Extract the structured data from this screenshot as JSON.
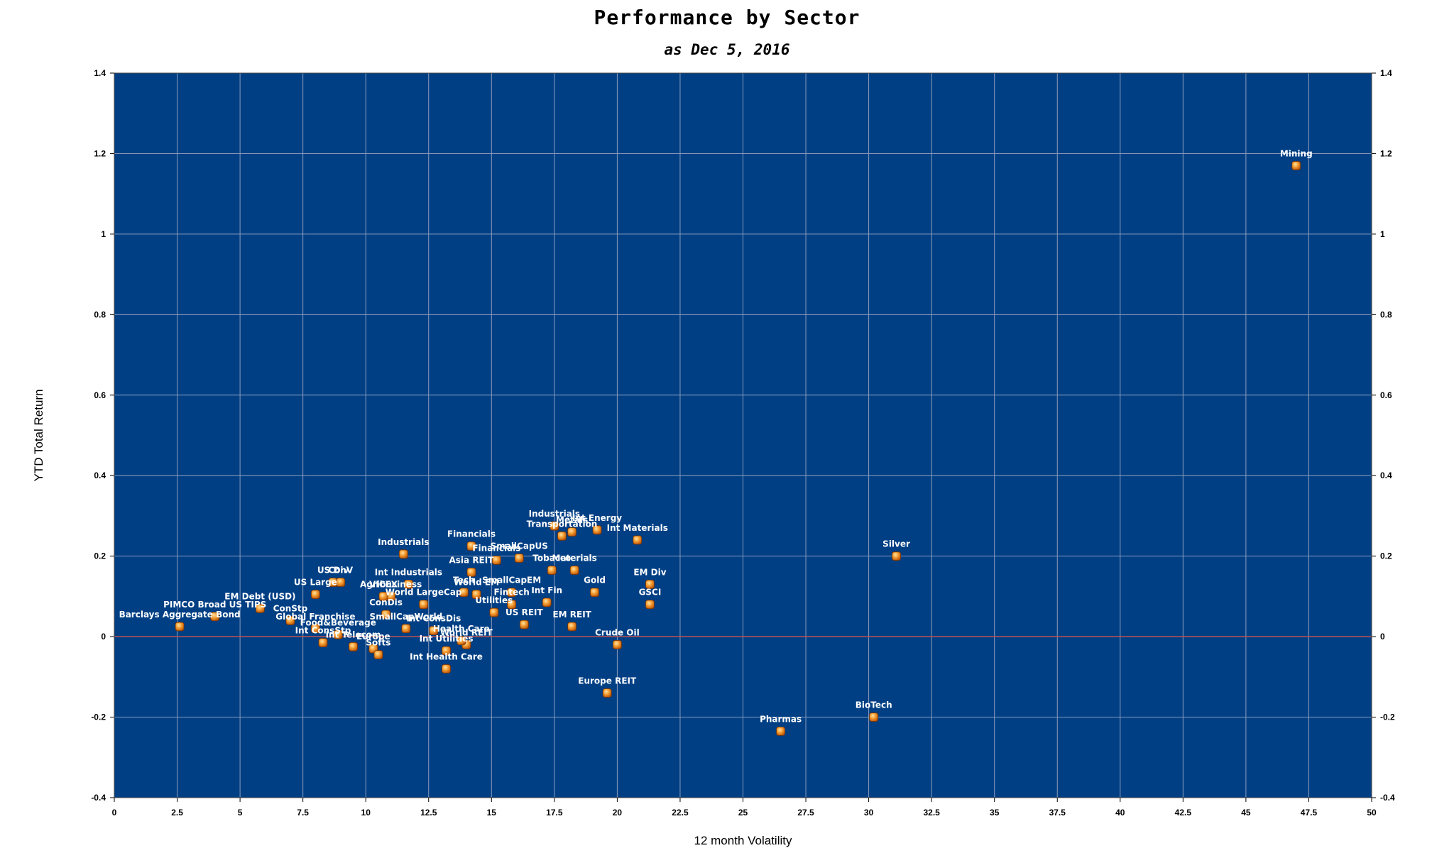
{
  "chart_data": {
    "type": "scatter",
    "title": "Performance by Sector",
    "subtitle": "as Dec 5, 2016",
    "xlabel": "12 month Volatility",
    "ylabel": "YTD Total Return",
    "xlim": [
      0,
      50
    ],
    "ylim": [
      -0.4,
      1.4
    ],
    "x_ticks": [
      "0",
      "2.5",
      "5",
      "7.5",
      "10",
      "12.5",
      "15",
      "17.5",
      "20",
      "22.5",
      "25",
      "27.5",
      "30",
      "32.5",
      "35",
      "37.5",
      "40",
      "42.5",
      "45",
      "47.5",
      "50"
    ],
    "y_ticks": [
      "-0.4",
      "-0.2",
      "0",
      "0.2",
      "0.4",
      "0.6",
      "0.8",
      "1",
      "1.2",
      "1.4"
    ],
    "grid": true,
    "zero_line": true,
    "colors": {
      "plot_background": "#003f84",
      "grid": "#8c9dbd",
      "zero_line": "#c0504d",
      "marker": "#f08a22",
      "label": "#ffffff"
    },
    "points": [
      {
        "label": "Mining",
        "x": 47.0,
        "y": 1.17
      },
      {
        "label": "Silver",
        "x": 31.1,
        "y": 0.2
      },
      {
        "label": "BioTech",
        "x": 30.2,
        "y": -0.2
      },
      {
        "label": "Pharmas",
        "x": 26.5,
        "y": -0.235
      },
      {
        "label": "Europe REIT",
        "x": 19.6,
        "y": -0.14
      },
      {
        "label": "Crude Oil",
        "x": 20.0,
        "y": -0.02
      },
      {
        "label": "GSCI",
        "x": 21.3,
        "y": 0.08
      },
      {
        "label": "EM Div",
        "x": 21.3,
        "y": 0.13
      },
      {
        "label": "Int Materials",
        "x": 20.8,
        "y": 0.24
      },
      {
        "label": "Gold",
        "x": 19.1,
        "y": 0.11
      },
      {
        "label": "Materials",
        "x": 18.3,
        "y": 0.165
      },
      {
        "label": "EM REIT",
        "x": 18.2,
        "y": 0.025
      },
      {
        "label": "Int Energy",
        "x": 19.2,
        "y": 0.265
      },
      {
        "label": "Metals",
        "x": 18.2,
        "y": 0.26
      },
      {
        "label": "Industrials",
        "x": 17.5,
        "y": 0.275
      },
      {
        "label": "Transportation",
        "x": 17.8,
        "y": 0.25
      },
      {
        "label": "Int Fin",
        "x": 17.2,
        "y": 0.085
      },
      {
        "label": "SmallCapUS",
        "x": 16.1,
        "y": 0.195
      },
      {
        "label": "Financials",
        "x": 15.2,
        "y": 0.19
      },
      {
        "label": "Financials",
        "x": 14.2,
        "y": 0.225
      },
      {
        "label": "Tobacco",
        "x": 17.4,
        "y": 0.165
      },
      {
        "label": "Asia REIT",
        "x": 14.2,
        "y": 0.16
      },
      {
        "label": "SmallCapEM",
        "x": 15.8,
        "y": 0.11
      },
      {
        "label": "Tech",
        "x": 13.9,
        "y": 0.11
      },
      {
        "label": "World EM",
        "x": 14.4,
        "y": 0.105
      },
      {
        "label": "Fintech",
        "x": 15.8,
        "y": 0.08
      },
      {
        "label": "Utilities",
        "x": 15.1,
        "y": 0.06
      },
      {
        "label": "US REIT",
        "x": 16.3,
        "y": 0.03
      },
      {
        "label": "Int ConsDis",
        "x": 12.7,
        "y": 0.015
      },
      {
        "label": "SmallCapWorld",
        "x": 11.6,
        "y": 0.02
      },
      {
        "label": "World LargeCap",
        "x": 12.3,
        "y": 0.08
      },
      {
        "label": "Agribusiness",
        "x": 11.0,
        "y": 0.1
      },
      {
        "label": "VICEX",
        "x": 10.7,
        "y": 0.1
      },
      {
        "label": "Industrials",
        "x": 11.5,
        "y": 0.205
      },
      {
        "label": "Int Industrials",
        "x": 11.7,
        "y": 0.13
      },
      {
        "label": "US Div",
        "x": 8.7,
        "y": 0.135
      },
      {
        "label": "ConV",
        "x": 9.0,
        "y": 0.135
      },
      {
        "label": "US Large",
        "x": 8.0,
        "y": 0.105
      },
      {
        "label": "ConDis",
        "x": 10.8,
        "y": 0.055
      },
      {
        "label": "World REIT",
        "x": 14.0,
        "y": -0.02
      },
      {
        "label": "Health Care",
        "x": 13.8,
        "y": -0.01
      },
      {
        "label": "Int Health Care",
        "x": 13.2,
        "y": -0.08
      },
      {
        "label": "Int Utilities",
        "x": 13.2,
        "y": -0.035
      },
      {
        "label": "Food&Beverage",
        "x": 8.9,
        "y": 0.005
      },
      {
        "label": "Europe",
        "x": 10.3,
        "y": -0.03
      },
      {
        "label": "Softs",
        "x": 10.5,
        "y": -0.045
      },
      {
        "label": "Int Telecom",
        "x": 9.5,
        "y": -0.025
      },
      {
        "label": "Int ConsStp",
        "x": 8.3,
        "y": -0.015
      },
      {
        "label": "Global Franchise",
        "x": 8.0,
        "y": 0.02
      },
      {
        "label": "ConStp",
        "x": 7.0,
        "y": 0.04
      },
      {
        "label": "EM Debt (USD)",
        "x": 5.8,
        "y": 0.07
      },
      {
        "label": "PIMCO Broad US TIPS",
        "x": 4.0,
        "y": 0.05
      },
      {
        "label": "Barclays Aggregate Bond",
        "x": 2.6,
        "y": 0.025
      }
    ]
  }
}
